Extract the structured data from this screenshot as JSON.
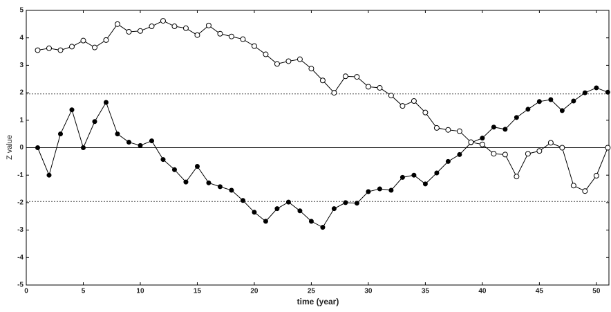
{
  "chart_data": {
    "type": "line",
    "xlabel": "time (year)",
    "ylabel": "Z value",
    "x": [
      1,
      2,
      3,
      4,
      5,
      6,
      7,
      8,
      9,
      10,
      11,
      12,
      13,
      14,
      15,
      16,
      17,
      18,
      19,
      20,
      21,
      22,
      23,
      24,
      25,
      26,
      27,
      28,
      29,
      30,
      31,
      32,
      33,
      34,
      35,
      36,
      37,
      38,
      39,
      40,
      41,
      42,
      43,
      44,
      45,
      46,
      47,
      48,
      49,
      50,
      51
    ],
    "series": [
      {
        "color": "#000000",
        "marker": "filled",
        "values": [
          0,
          -1,
          0.5,
          1.38,
          0,
          0.95,
          1.65,
          0.5,
          0.2,
          0.08,
          0.25,
          -0.43,
          -0.8,
          -1.25,
          -0.68,
          -1.28,
          -1.42,
          -1.55,
          -1.92,
          -2.35,
          -2.68,
          -2.22,
          -1.98,
          -2.3,
          -2.68,
          -2.9,
          -2.22,
          -2.0,
          -2.02,
          -1.6,
          -1.5,
          -1.55,
          -1.08,
          -1.0,
          -1.32,
          -0.92,
          -0.5,
          -0.25,
          0.18,
          0.35,
          0.75,
          0.67,
          1.1,
          1.4,
          1.68,
          1.75,
          1.35,
          1.7,
          2.0,
          2.18,
          2.02
        ]
      },
      {
        "color": "#000000",
        "marker": "open",
        "values": [
          3.55,
          3.62,
          3.55,
          3.68,
          3.9,
          3.65,
          3.92,
          4.5,
          4.22,
          4.25,
          4.42,
          4.62,
          4.42,
          4.35,
          4.1,
          4.45,
          4.15,
          4.05,
          3.95,
          3.7,
          3.4,
          3.05,
          3.15,
          3.22,
          2.88,
          2.45,
          2.0,
          2.6,
          2.58,
          2.22,
          2.18,
          1.9,
          1.52,
          1.7,
          1.28,
          0.72,
          0.65,
          0.6,
          0.2,
          0.12,
          -0.22,
          -0.25,
          -1.05,
          -0.22,
          -0.12,
          0.18,
          0.0,
          -1.38,
          -1.58,
          -1.02,
          0.0
        ]
      }
    ],
    "hlines": [
      {
        "value": 1.96,
        "style": "dotted"
      },
      {
        "value": 0,
        "style": "solid"
      },
      {
        "value": -1.96,
        "style": "dotted"
      }
    ],
    "xlim": [
      0,
      51.1
    ],
    "xticks": [
      0,
      5,
      10,
      15,
      20,
      25,
      30,
      35,
      40,
      45,
      50
    ],
    "ylim": [
      -5,
      5
    ],
    "yticks": [
      -5,
      -4,
      -3,
      -2,
      -1,
      0,
      1,
      2,
      3,
      4,
      5
    ]
  }
}
